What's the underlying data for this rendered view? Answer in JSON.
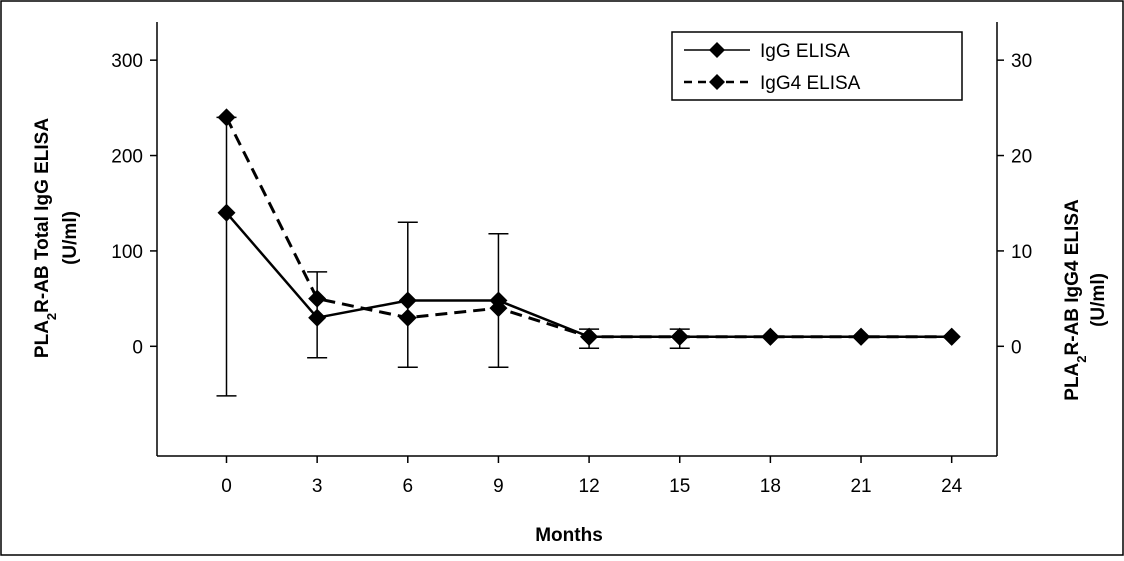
{
  "chart_data": {
    "type": "line",
    "xlabel": "Months",
    "ylabel": {
      "parts": [
        "PLA",
        "2",
        "R-AB Total IgG ELISA"
      ],
      "unit": "(U/ml)"
    },
    "y2label": {
      "parts": [
        "PLA",
        "2",
        "R-AB IgG4 ELISA"
      ],
      "unit": "(U/ml)"
    },
    "x": [
      0,
      3,
      6,
      9,
      12,
      15,
      18,
      21,
      24
    ],
    "xlim": [
      -2.3,
      25.5
    ],
    "xticks": [
      0,
      3,
      6,
      9,
      12,
      15,
      18,
      21,
      24
    ],
    "ylim": [
      -115,
      340
    ],
    "yticks": [
      0,
      100,
      200,
      300
    ],
    "y2lim": [
      -11.5,
      34
    ],
    "y2ticks": [
      0,
      10,
      20,
      30
    ],
    "legend": "top-right",
    "series": [
      {
        "name": "IgG ELISA",
        "color": "#000000",
        "dash": false,
        "values": [
          140,
          30,
          48,
          48,
          10,
          10,
          10,
          10,
          10
        ],
        "error_minus": [
          192,
          42,
          70,
          70,
          12,
          12,
          null,
          null,
          null
        ],
        "error_plus": [
          100,
          48,
          82,
          70,
          8,
          8,
          null,
          null,
          null
        ]
      },
      {
        "name": "IgG4 ELISA",
        "color": "#000000",
        "dash": true,
        "axis": "y2",
        "values": [
          24,
          5,
          3,
          4,
          1,
          1,
          1,
          1,
          1
        ]
      }
    ]
  }
}
